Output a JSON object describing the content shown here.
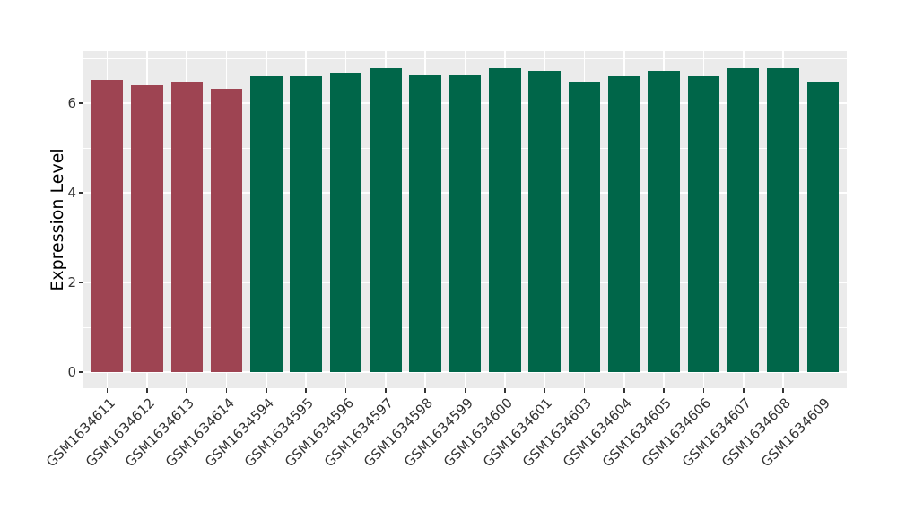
{
  "chart_data": {
    "type": "bar",
    "title": "",
    "xlabel": "",
    "ylabel": "Expression Level",
    "categories": [
      "GSM1634611",
      "GSM1634612",
      "GSM1634613",
      "GSM1634614",
      "GSM1634594",
      "GSM1634595",
      "GSM1634596",
      "GSM1634597",
      "GSM1634598",
      "GSM1634599",
      "GSM1634600",
      "GSM1634601",
      "GSM1634603",
      "GSM1634604",
      "GSM1634605",
      "GSM1634606",
      "GSM1634607",
      "GSM1634608",
      "GSM1634609"
    ],
    "values": [
      6.52,
      6.4,
      6.46,
      6.33,
      6.61,
      6.61,
      6.69,
      6.79,
      6.62,
      6.62,
      6.79,
      6.73,
      6.49,
      6.61,
      6.72,
      6.61,
      6.79,
      6.78,
      6.49
    ],
    "bar_groups": [
      "group1",
      "group1",
      "group1",
      "group1",
      "group2",
      "group2",
      "group2",
      "group2",
      "group2",
      "group2",
      "group2",
      "group2",
      "group2",
      "group2",
      "group2",
      "group2",
      "group2",
      "group2",
      "group2"
    ],
    "group_colors": {
      "group1": "#9E4452",
      "group2": "#006649"
    },
    "yticks": [
      0,
      2,
      4,
      6
    ],
    "minor_yticks": [
      1,
      3,
      5,
      7
    ],
    "ylim": [
      -0.36,
      7.16
    ],
    "grid": true,
    "x_tick_rotation": 45,
    "legend_position": "none",
    "panel_background": "#EBEBEB",
    "gridline_color": "#FFFFFF",
    "tick_color": "#333333",
    "tick_label_color": "#333333"
  }
}
